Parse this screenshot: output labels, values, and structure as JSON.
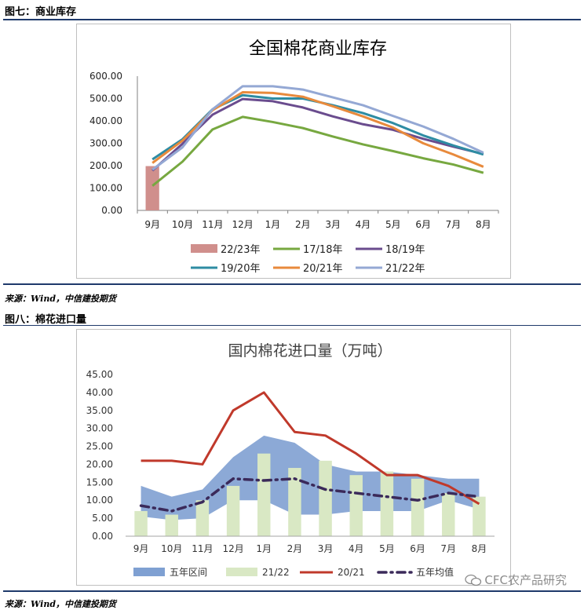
{
  "fig7": {
    "label": "图七：商业库存",
    "source": "来源：Wind，中信建投期货"
  },
  "fig8": {
    "label": "图八：棉花进口量",
    "source": "来源：Wind，中信建投期货"
  },
  "watermark": "CFC农产品研究",
  "colors": {
    "rule": "#1f3a6b",
    "s2223": "#d08f8c",
    "s1718": "#77a840",
    "s1819": "#6a4c8e",
    "s1920": "#2e8ca3",
    "s2021": "#e88a3c",
    "s2122": "#94a8d4",
    "band": "#7fa0d2",
    "bar2122": "#d9e8c4",
    "line2021": "#c0392b",
    "avg": "#3b2a5a"
  },
  "chart_data": [
    {
      "type": "line",
      "title": "全国棉花商业库存",
      "categories": [
        "9月",
        "10月",
        "11月",
        "12月",
        "1月",
        "2月",
        "3月",
        "4月",
        "5月",
        "6月",
        "7月",
        "8月"
      ],
      "ylim": [
        0,
        600
      ],
      "yticks": [
        "0.00",
        "100.00",
        "200.00",
        "300.00",
        "400.00",
        "500.00",
        "600.00"
      ],
      "series": [
        {
          "name": "22/23年",
          "kind": "bar",
          "values": [
            198,
            null,
            null,
            null,
            null,
            null,
            null,
            null,
            null,
            null,
            null,
            null
          ]
        },
        {
          "name": "17/18年",
          "kind": "line",
          "values": [
            110,
            218,
            362,
            418,
            395,
            368,
            330,
            295,
            265,
            233,
            205,
            168
          ]
        },
        {
          "name": "18/19年",
          "kind": "line",
          "values": [
            178,
            298,
            428,
            498,
            488,
            460,
            420,
            385,
            360,
            320,
            285,
            252
          ]
        },
        {
          "name": "19/20年",
          "kind": "line",
          "values": [
            228,
            318,
            452,
            515,
            500,
            500,
            470,
            435,
            390,
            335,
            290,
            250
          ]
        },
        {
          "name": "20/21年",
          "kind": "line",
          "values": [
            212,
            312,
            448,
            528,
            525,
            508,
            465,
            420,
            370,
            300,
            250,
            195
          ]
        },
        {
          "name": "21/22年",
          "kind": "line",
          "values": [
            182,
            282,
            452,
            555,
            555,
            540,
            505,
            470,
            422,
            375,
            320,
            258
          ]
        }
      ]
    },
    {
      "type": "line",
      "title": "国内棉花进口量（万吨）",
      "categories": [
        "9月",
        "10月",
        "11月",
        "12月",
        "1月",
        "2月",
        "3月",
        "4月",
        "5月",
        "6月",
        "7月",
        "8月"
      ],
      "ylim": [
        0,
        45
      ],
      "yticks": [
        "0.00",
        "5.00",
        "10.00",
        "15.00",
        "20.00",
        "25.00",
        "30.00",
        "35.00",
        "40.00",
        "45.00"
      ],
      "series": [
        {
          "name": "五年区间",
          "kind": "band",
          "low": [
            5.5,
            4.5,
            5.0,
            10.0,
            10.0,
            6.0,
            6.0,
            7.0,
            7.0,
            7.0,
            10.0,
            7.5
          ],
          "high": [
            14.0,
            11.0,
            13.0,
            22.0,
            28.0,
            26.0,
            20.0,
            18.0,
            18.0,
            17.0,
            16.0,
            16.0
          ]
        },
        {
          "name": "21/22",
          "kind": "bar",
          "values": [
            7.0,
            6.0,
            10.0,
            14.0,
            23.0,
            19.0,
            21.0,
            17.0,
            18.0,
            16.0,
            12.0,
            11.0
          ]
        },
        {
          "name": "20/21",
          "kind": "line",
          "values": [
            21.0,
            21.0,
            20.0,
            35.0,
            40.0,
            29.0,
            28.0,
            23.0,
            17.0,
            17.0,
            14.0,
            9.0
          ]
        },
        {
          "name": "五年均值",
          "kind": "dotted",
          "values": [
            8.5,
            7.0,
            9.5,
            16.0,
            15.5,
            16.0,
            13.0,
            12.0,
            11.0,
            10.0,
            12.0,
            11.0
          ]
        }
      ]
    }
  ]
}
